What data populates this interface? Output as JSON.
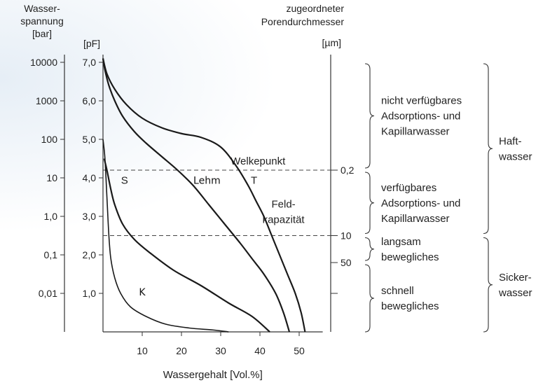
{
  "chart_data": {
    "type": "line",
    "title": "",
    "xlabel": "Wassergehalt [Vol.%]",
    "xlim": [
      0,
      55
    ],
    "x_ticks": [
      10,
      20,
      30,
      40,
      50
    ],
    "ylim": [
      0,
      7.2
    ],
    "pf_ticks": [
      "7,0",
      "6,0",
      "5,0",
      "4,0",
      "3,0",
      "2,0",
      "1,0"
    ],
    "pf_values": [
      7,
      6,
      5,
      4,
      3,
      2,
      1
    ],
    "axis_left_outer": {
      "label_lines": [
        "Wasser-",
        "spannung",
        "[bar]"
      ],
      "ticks": [
        "10000",
        "1000",
        "100",
        "10",
        "1,0",
        "0,1",
        "0,01"
      ]
    },
    "axis_left_inner": {
      "label": "[pF]"
    },
    "axis_right": {
      "label_lines": [
        "zugeordneter",
        "Porendurchmesser",
        "[µm]"
      ],
      "ticks": [
        {
          "label": "0,2",
          "pf": 4.2
        },
        {
          "label": "10",
          "pf": 2.5
        },
        {
          "label": "50",
          "pf": 1.8
        }
      ]
    },
    "reference_lines": [
      {
        "name": "Welkepunkt",
        "pf": 4.2
      },
      {
        "name": "Feldkapazität",
        "pf": 2.5,
        "label_lines": [
          "Feld-",
          "kapazität"
        ]
      }
    ],
    "series": [
      {
        "name": "S",
        "points": [
          [
            0.3,
            4.5
          ],
          [
            1,
            4.2
          ],
          [
            2,
            3.7
          ],
          [
            3,
            3.3
          ],
          [
            5,
            2.8
          ],
          [
            8,
            2.4
          ],
          [
            12,
            2.05
          ],
          [
            18,
            1.6
          ],
          [
            25,
            1.2
          ],
          [
            32,
            0.75
          ],
          [
            38,
            0.4
          ],
          [
            42.5,
            0
          ]
        ]
      },
      {
        "name": "Lehm",
        "points": [
          [
            0,
            7.1
          ],
          [
            0.5,
            6.8
          ],
          [
            1.5,
            6.4
          ],
          [
            3,
            6.0
          ],
          [
            5,
            5.6
          ],
          [
            8,
            5.2
          ],
          [
            11,
            4.9
          ],
          [
            15,
            4.55
          ],
          [
            19,
            4.2
          ],
          [
            23,
            3.8
          ],
          [
            27,
            3.3
          ],
          [
            31,
            2.8
          ],
          [
            35,
            2.3
          ],
          [
            38,
            1.9
          ],
          [
            41,
            1.5
          ],
          [
            44,
            1.0
          ],
          [
            46,
            0.5
          ],
          [
            47.5,
            0
          ]
        ]
      },
      {
        "name": "T",
        "points": [
          [
            0,
            7.1
          ],
          [
            1,
            6.7
          ],
          [
            3,
            6.3
          ],
          [
            6,
            5.9
          ],
          [
            10,
            5.55
          ],
          [
            15,
            5.3
          ],
          [
            20,
            5.15
          ],
          [
            25,
            5.05
          ],
          [
            30,
            4.8
          ],
          [
            34,
            4.3
          ],
          [
            37,
            3.8
          ],
          [
            39,
            3.4
          ],
          [
            41,
            3.0
          ],
          [
            43,
            2.5
          ],
          [
            45,
            2.0
          ],
          [
            47,
            1.5
          ],
          [
            49,
            1.0
          ],
          [
            50.5,
            0.5
          ],
          [
            51.5,
            0
          ]
        ]
      },
      {
        "name": "K",
        "points": [
          [
            0,
            5.0
          ],
          [
            0.5,
            4.5
          ],
          [
            1,
            3.5
          ],
          [
            1.5,
            2.5
          ],
          [
            2,
            1.9
          ],
          [
            3,
            1.4
          ],
          [
            4.5,
            1.0
          ],
          [
            7,
            0.65
          ],
          [
            11,
            0.4
          ],
          [
            16,
            0.2
          ],
          [
            22,
            0.1
          ],
          [
            28,
            0.05
          ],
          [
            32,
            0.0
          ]
        ]
      }
    ],
    "series_labels": [
      {
        "text": "S",
        "x": 5.5,
        "pf": 3.85,
        "hand": false
      },
      {
        "text": "Lehm",
        "x": 26.5,
        "pf": 3.85,
        "hand": true
      },
      {
        "text": "T",
        "x": 38.5,
        "pf": 3.85,
        "hand": false
      },
      {
        "text": "K",
        "x": 10,
        "pf": 0.95,
        "hand": true
      }
    ],
    "zones": [
      {
        "lines": [
          "nicht verfügbares",
          "Adsorptions- und",
          "Kapillarwasser"
        ],
        "pf_from": 7.0,
        "pf_to": 4.2
      },
      {
        "lines": [
          "verfügbares",
          "Adsorptions- und",
          "Kapillarwasser"
        ],
        "pf_from": 4.2,
        "pf_to": 2.5
      },
      {
        "lines": [
          "langsam",
          "bewegliches"
        ],
        "pf_from": 2.5,
        "pf_to": 1.8
      },
      {
        "lines": [
          "schnell",
          "bewegliches"
        ],
        "pf_from": 1.8,
        "pf_to": 0
      }
    ],
    "groups": [
      {
        "lines": [
          "Haft-",
          "wasser"
        ],
        "pf_from": 7.0,
        "pf_to": 2.5
      },
      {
        "lines": [
          "Sicker-",
          "wasser"
        ],
        "pf_from": 2.5,
        "pf_to": 0
      }
    ]
  }
}
